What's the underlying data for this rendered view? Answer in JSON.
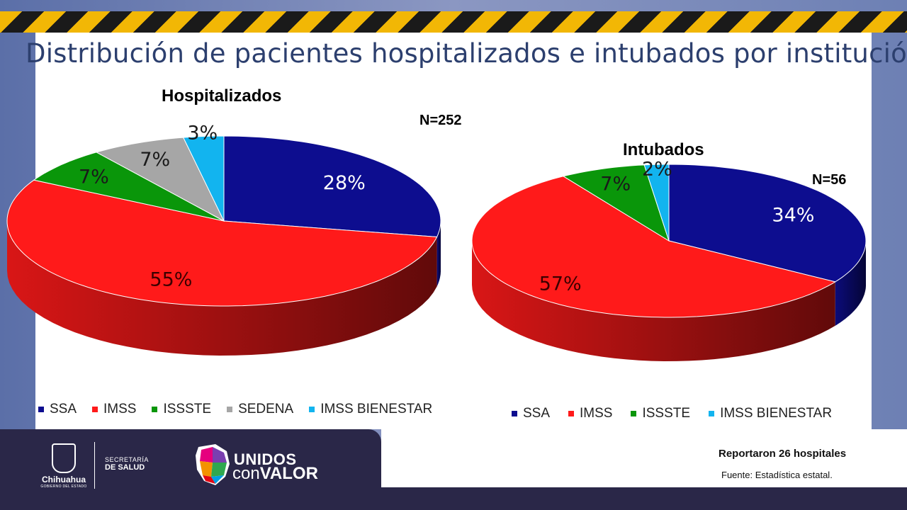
{
  "header": {
    "title": "Distribución de pacientes hospitalizados e intubados por institución"
  },
  "colors": {
    "SSA": "#0d0d8f",
    "IMSS": "#ff1a1a",
    "ISSSTE": "#0a960a",
    "SEDENA": "#a6a6a6",
    "IMSS BIENESTAR": "#12b4ef"
  },
  "chart_data": [
    {
      "type": "pie",
      "title": "Hospitalizados",
      "n_label": "N=252",
      "categories": [
        "SSA",
        "IMSS",
        "ISSSTE",
        "SEDENA",
        "IMSS BIENESTAR"
      ],
      "values": [
        28,
        55,
        7,
        7,
        3
      ],
      "labels": [
        "28%",
        "55%",
        "7%",
        "7%",
        "3%"
      ],
      "legend_position": "bottom"
    },
    {
      "type": "pie",
      "title": "Intubados",
      "n_label": "N=56",
      "categories": [
        "SSA",
        "IMSS",
        "ISSSTE",
        "IMSS BIENESTAR"
      ],
      "values": [
        34,
        57,
        7,
        2
      ],
      "labels": [
        "34%",
        "57%",
        "7%",
        "2%"
      ],
      "legend_position": "bottom"
    }
  ],
  "footer": {
    "state_name": "Chihuahua",
    "state_sub": "GOBIERNO DEL ESTADO",
    "secretaria_line1": "SECRETARÍA",
    "secretaria_line2": "DE SALUD",
    "brand_line1": "UNIDOS",
    "brand_line2_a": "con",
    "brand_line2_b": "VALOR",
    "reported": "Reportaron 26 hospitales",
    "source": "Fuente: Estadística estatal."
  }
}
